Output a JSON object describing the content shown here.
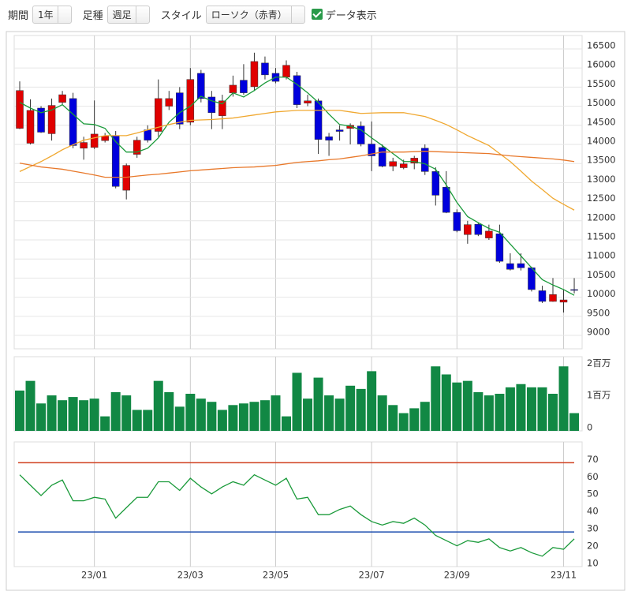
{
  "toolbar": {
    "period_label": "期間",
    "period": "1年",
    "bar_label": "足種",
    "bar": "週足",
    "style_label": "スタイル",
    "style": "ローソク（赤青）",
    "show_data": "データ表示"
  },
  "chart_data": [
    {
      "type": "candlestick",
      "up_color": "#e00000",
      "down_color": "#0000dd",
      "ylim": [
        8650,
        16850
      ],
      "yticks": [
        9000,
        9500,
        10000,
        10500,
        11000,
        11500,
        12000,
        12500,
        13000,
        13500,
        14000,
        14500,
        15000,
        15500,
        16000,
        16500
      ],
      "grid": true,
      "open": [
        14420,
        14030,
        14950,
        14280,
        15100,
        15200,
        13900,
        13920,
        14100,
        14230,
        12800,
        13740,
        14380,
        14340,
        15000,
        15350,
        14580,
        15860,
        15240,
        14750,
        15350,
        15680,
        15510,
        16130,
        15860,
        15760,
        15800,
        15080,
        15140,
        14200,
        14380,
        14420,
        14480,
        14010,
        13920,
        13430,
        13390,
        13510,
        13900,
        13290,
        12880,
        12220,
        11640,
        11910,
        11550,
        11660,
        10880,
        10880,
        10770,
        10170,
        9890,
        9870,
        10200
      ],
      "high": [
        15650,
        15180,
        15000,
        15200,
        15400,
        15350,
        14200,
        15150,
        14300,
        14350,
        13500,
        14200,
        14500,
        15700,
        15400,
        15500,
        16000,
        15950,
        15400,
        15300,
        15800,
        16100,
        16400,
        16300,
        16000,
        16200,
        15900,
        15300,
        15200,
        14300,
        14500,
        14550,
        14600,
        14600,
        14000,
        13650,
        13600,
        13700,
        14000,
        13400,
        13300,
        12300,
        12000,
        11950,
        11900,
        11900,
        11150,
        11150,
        10800,
        10300,
        10500,
        10200,
        10500
      ],
      "low": [
        14400,
        14000,
        14300,
        14100,
        15050,
        13900,
        13600,
        13880,
        14050,
        12850,
        12560,
        13650,
        14050,
        14200,
        14900,
        14400,
        14500,
        15100,
        14400,
        14400,
        15250,
        15300,
        15400,
        15700,
        15600,
        15700,
        14950,
        15000,
        13750,
        13700,
        14100,
        14000,
        13950,
        13300,
        13400,
        13300,
        13350,
        13350,
        13200,
        12400,
        12200,
        11700,
        11400,
        11600,
        11500,
        10900,
        10700,
        10700,
        10150,
        9850,
        9880,
        9600,
        10100
      ],
      "close": [
        15410,
        14890,
        14320,
        15020,
        15300,
        13970,
        14050,
        14270,
        14220,
        12900,
        13450,
        14110,
        14110,
        15200,
        15200,
        14530,
        15700,
        15200,
        14830,
        15140,
        15550,
        15350,
        16170,
        15820,
        15650,
        16070,
        15040,
        15140,
        14130,
        14110,
        14340,
        14500,
        14010,
        13700,
        13430,
        13550,
        13490,
        13640,
        13290,
        12670,
        12220,
        11740,
        11900,
        11640,
        11730,
        10940,
        10730,
        10770,
        10200,
        9890,
        10070,
        9930,
        10180
      ],
      "moving_averages": [
        {
          "color": "#1a9a3a",
          "values": [
            15100,
            14950,
            14830,
            14900,
            15040,
            14790,
            14540,
            14520,
            14420,
            14070,
            13800,
            13800,
            13900,
            14170,
            14580,
            14830,
            15000,
            15260,
            15140,
            15060,
            15350,
            15240,
            15410,
            15610,
            15760,
            15760,
            15570,
            15350,
            15100,
            14790,
            14520,
            14480,
            14380,
            14170,
            13970,
            13760,
            13550,
            13550,
            13490,
            13350,
            12940,
            12480,
            12110,
            11950,
            11800,
            11700,
            11390,
            11080,
            10770,
            10460,
            10320,
            10200,
            10050
          ]
        },
        {
          "color": "#f0a830",
          "values": [
            13290,
            13420,
            13550,
            13700,
            13860,
            13990,
            14110,
            14170,
            14230,
            14230,
            14230,
            14300,
            14380,
            14450,
            14520,
            14580,
            14630,
            14640,
            14650,
            14670,
            14690,
            14730,
            14770,
            14810,
            14850,
            14870,
            14890,
            14890,
            14890,
            14890,
            14890,
            14850,
            14810,
            14820,
            14830,
            14830,
            14830,
            14780,
            14730,
            14630,
            14520,
            14380,
            14230,
            14100,
            13970,
            13760,
            13550,
            13300,
            13040,
            12820,
            12590,
            12430,
            12280
          ]
        },
        {
          "color": "#e8782a",
          "values": [
            13510,
            13460,
            13410,
            13380,
            13350,
            13300,
            13250,
            13200,
            13140,
            13140,
            13140,
            13170,
            13200,
            13220,
            13250,
            13280,
            13310,
            13330,
            13350,
            13370,
            13390,
            13400,
            13410,
            13430,
            13450,
            13490,
            13530,
            13550,
            13570,
            13600,
            13620,
            13660,
            13700,
            13750,
            13800,
            13800,
            13800,
            13810,
            13820,
            13810,
            13800,
            13790,
            13780,
            13770,
            13760,
            13730,
            13700,
            13680,
            13660,
            13640,
            13620,
            13590,
            13550
          ]
        }
      ]
    },
    {
      "type": "bar",
      "color": "#118844",
      "ylim": [
        0,
        2300000
      ],
      "yticks": [
        0,
        {
          "value": 1000000,
          "label": "1百万"
        },
        {
          "value": 2000000,
          "label": "2百万"
        }
      ],
      "values": [
        1250000,
        1550000,
        850000,
        1100000,
        950000,
        1050000,
        950000,
        1000000,
        450000,
        1200000,
        1100000,
        650000,
        650000,
        1550000,
        1200000,
        750000,
        1150000,
        1000000,
        900000,
        650000,
        800000,
        850000,
        900000,
        950000,
        1100000,
        450000,
        1800000,
        1000000,
        1650000,
        1100000,
        1000000,
        1400000,
        1300000,
        1850000,
        1100000,
        800000,
        550000,
        700000,
        900000,
        2000000,
        1750000,
        1500000,
        1550000,
        1200000,
        1100000,
        1150000,
        1350000,
        1450000,
        1350000,
        1350000,
        1150000,
        2000000,
        550000
      ]
    },
    {
      "type": "line",
      "color": "#1a9a3a",
      "ylim": [
        10,
        82
      ],
      "yticks": [
        10,
        20,
        30,
        40,
        50,
        60,
        70
      ],
      "levels": [
        {
          "value": 70,
          "color": "#d04020"
        },
        {
          "value": 30,
          "color": "#2050b0"
        }
      ],
      "categories": [
        null,
        null,
        null,
        null,
        null,
        null,
        null,
        "23/01",
        null,
        null,
        null,
        null,
        null,
        null,
        null,
        null,
        "23/03",
        null,
        null,
        null,
        null,
        null,
        null,
        null,
        "23/05",
        null,
        null,
        null,
        null,
        null,
        null,
        null,
        null,
        "23/07",
        null,
        null,
        null,
        null,
        null,
        null,
        null,
        "23/09",
        null,
        null,
        null,
        null,
        null,
        null,
        null,
        null,
        null,
        "23/11",
        null
      ],
      "values": [
        63,
        57,
        51,
        57,
        60,
        48,
        48,
        50,
        49,
        38,
        44,
        50,
        50,
        59,
        59,
        54,
        61,
        56,
        52,
        56,
        59,
        57,
        63,
        60,
        57,
        61,
        49,
        50,
        40,
        40,
        43,
        45,
        40,
        36,
        34,
        36,
        35,
        38,
        34,
        28,
        25,
        22,
        25,
        24,
        26,
        21,
        19,
        21,
        18,
        16,
        21,
        20,
        26
      ]
    }
  ]
}
